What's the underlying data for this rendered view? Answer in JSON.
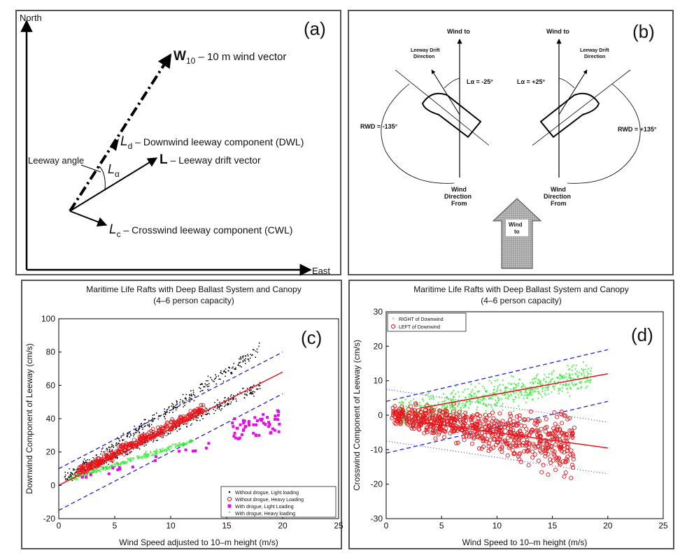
{
  "panel_a": {
    "label": "(a)",
    "north": "North",
    "east": "East",
    "w10_symbol": "W",
    "w10_sub": "10",
    "w10_text": " – 10 m wind vector",
    "ld_symbol": "L",
    "ld_sub": "d",
    "ld_text": " – Downwind leeway component (DWL)",
    "l_symbol": "L",
    "l_text": " – Leeway drift vector",
    "lc_symbol": "L",
    "lc_sub": "c",
    "lc_text": " – Crosswind leeway component (CWL)",
    "angle_label": "Leeway angle",
    "la_symbol": "L",
    "la_sub": "α"
  },
  "panel_b": {
    "label": "(b)",
    "wind_to_left": "Wind to",
    "wind_to_right": "Wind to",
    "drift_left_1": "Leeway Drift",
    "drift_left_2": "Direction",
    "drift_right_1": "Leeway Drift",
    "drift_right_2": "Direction",
    "la_left": "Lα = -25°",
    "la_right": "Lα = +25°",
    "rwd_left": "RWD = -135°",
    "rwd_right": "RWD = +135°",
    "from_left_1": "Wind",
    "from_left_2": "Direction",
    "from_left_3": "From",
    "from_right_1": "Wind",
    "from_right_2": "Direction",
    "from_right_3": "From",
    "arrow_1": "Wind",
    "arrow_2": "to"
  },
  "chart_data": [
    {
      "type": "scatter",
      "panel_label": "(c)",
      "title": "Maritime Life Rafts with Deep Ballast System and Canopy",
      "subtitle": "(4–6 person capacity)",
      "xlabel": "Wind Speed adjusted to 10–m height (m/s)",
      "ylabel": "Downwind Component of Leeway (cm/s)",
      "xlim": [
        0,
        25
      ],
      "ylim": [
        -20,
        100
      ],
      "xticks": [
        "0",
        "5",
        "10",
        "15",
        "20",
        "25"
      ],
      "yticks": [
        "-20",
        "0",
        "20",
        "40",
        "60",
        "80",
        "100"
      ],
      "grid": false,
      "legend_position": "bottom-right",
      "series": [
        {
          "name": "Without drogue, Light loading",
          "marker": "dot",
          "color": "#000000"
        },
        {
          "name": "Without drogue, Heavy Loading",
          "marker": "circle",
          "color": "#e8141a"
        },
        {
          "name": "With drogue, Light Loading",
          "marker": "square",
          "color": "#e010e0"
        },
        {
          "name": "With drogue, Heavy loading",
          "marker": "star",
          "color": "#2ee82e"
        }
      ],
      "fit_line": {
        "x": [
          0,
          20
        ],
        "y": [
          0,
          68
        ],
        "color": "#e8141a"
      },
      "bound_upper": {
        "x": [
          0,
          20
        ],
        "y": [
          10,
          80
        ],
        "color": "#2020e0"
      },
      "bound_lower": {
        "x": [
          0,
          20
        ],
        "y": [
          -15,
          55
        ],
        "color": "#2020e0"
      }
    },
    {
      "type": "scatter",
      "panel_label": "(d)",
      "title": "Maritime Life Rafts with Deep Ballast System and Canopy",
      "subtitle": "(4–6 person capacity)",
      "xlabel": "Wind Speed to 10–m height (m/s)",
      "ylabel": "Crosswind Component of Leeway (cm/s)",
      "xlim": [
        0,
        25
      ],
      "ylim": [
        -30,
        30
      ],
      "xticks": [
        "0",
        "5",
        "10",
        "15",
        "20",
        "25"
      ],
      "yticks": [
        "-30",
        "-20",
        "-10",
        "0",
        "10",
        "20",
        "30"
      ],
      "grid": false,
      "legend_position": "top-left",
      "series": [
        {
          "name": "RIGHT of Downwind",
          "marker": "star",
          "color": "#2ee82e"
        },
        {
          "name": "LEFT of Downwind",
          "marker": "circle",
          "color": "#e8141a"
        }
      ],
      "fit_right": {
        "x": [
          3,
          20
        ],
        "y": [
          2,
          12
        ],
        "color": "#e8141a"
      },
      "fit_left": {
        "x": [
          3,
          20
        ],
        "y": [
          -2,
          -9.5
        ],
        "color": "#e8141a"
      },
      "bound_right_upper": {
        "x": [
          0,
          20
        ],
        "y": [
          4,
          19
        ],
        "color": "#2020e0"
      },
      "bound_right_lower": {
        "x": [
          0,
          20
        ],
        "y": [
          -11,
          4
        ],
        "color": "#2020e0"
      },
      "dotted_left_upper": {
        "x": [
          0,
          20
        ],
        "y": [
          7.5,
          -2
        ],
        "color": "#5050e0"
      },
      "dotted_left_lower": {
        "x": [
          0,
          20
        ],
        "y": [
          -7.5,
          -17
        ],
        "color": "#5050e0"
      }
    }
  ]
}
